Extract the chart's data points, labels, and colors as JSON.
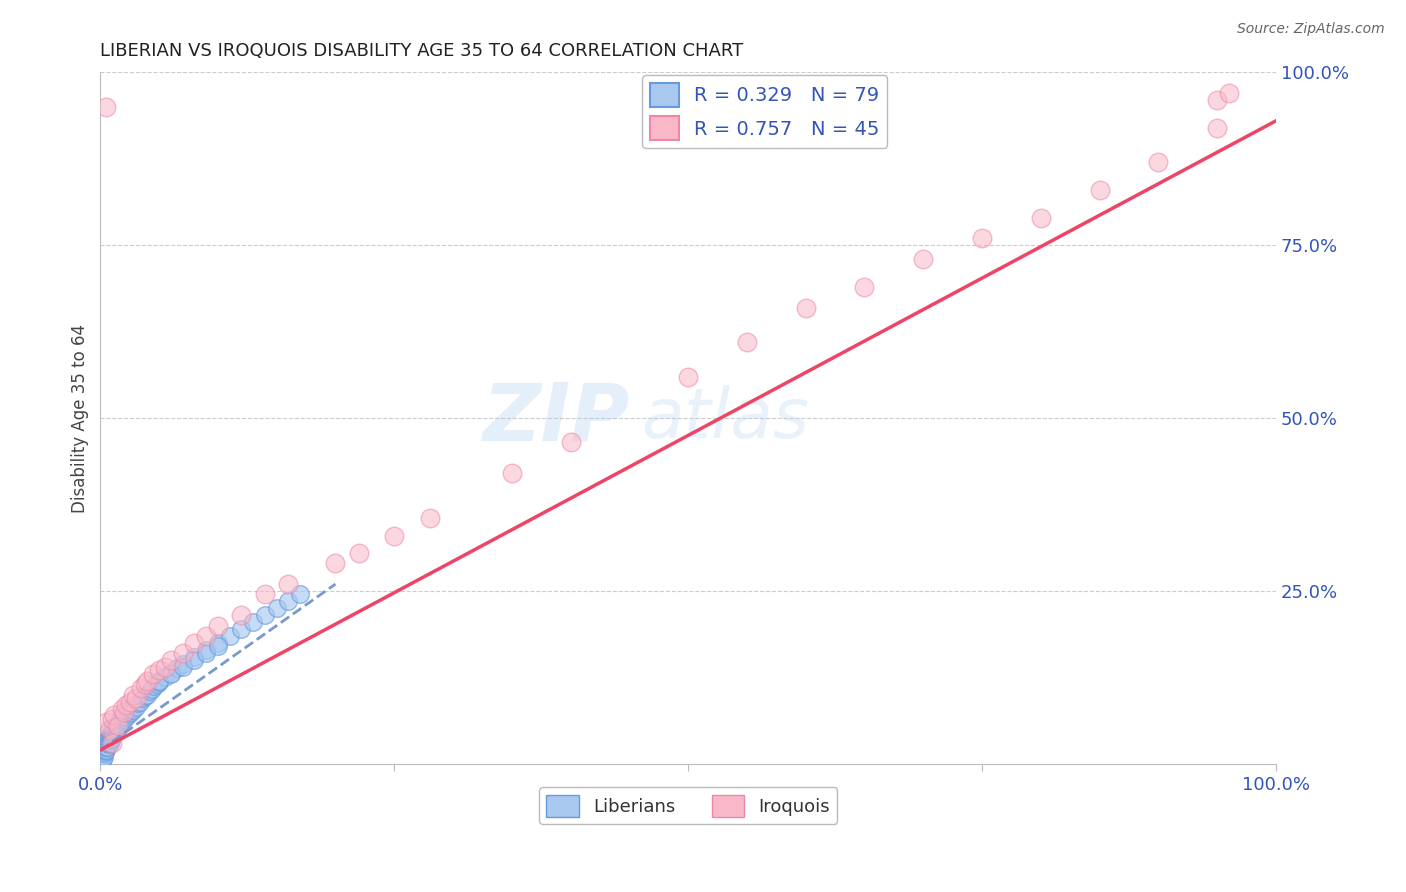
{
  "title": "LIBERIAN VS IROQUOIS DISABILITY AGE 35 TO 64 CORRELATION CHART",
  "source_text": "Source: ZipAtlas.com",
  "ylabel": "Disability Age 35 to 64",
  "xlim": [
    0.0,
    1.0
  ],
  "ylim": [
    0.0,
    1.0
  ],
  "watermark": "ZIPatlas",
  "legend_r1": "R = 0.329",
  "legend_n1": "N = 79",
  "legend_r2": "R = 0.757",
  "legend_n2": "N = 45",
  "color_liberian_fill": "#A8C8F0",
  "color_liberian_edge": "#6699DD",
  "color_iroquois_fill": "#F8B8C8",
  "color_iroquois_edge": "#EE88AA",
  "color_line_liberian": "#7799CC",
  "color_line_iroquois": "#EE4466",
  "color_grid": "#CCCCCC",
  "color_title": "#222222",
  "color_source": "#666666",
  "color_axis_blue": "#3355BB",
  "background_color": "#FFFFFF",
  "liberian_x": [
    0.001,
    0.002,
    0.002,
    0.003,
    0.003,
    0.003,
    0.004,
    0.004,
    0.004,
    0.005,
    0.005,
    0.005,
    0.006,
    0.006,
    0.006,
    0.007,
    0.007,
    0.008,
    0.008,
    0.008,
    0.009,
    0.009,
    0.01,
    0.01,
    0.01,
    0.011,
    0.011,
    0.012,
    0.012,
    0.013,
    0.013,
    0.014,
    0.014,
    0.015,
    0.015,
    0.016,
    0.017,
    0.018,
    0.019,
    0.02,
    0.021,
    0.022,
    0.023,
    0.024,
    0.025,
    0.026,
    0.027,
    0.028,
    0.03,
    0.032,
    0.034,
    0.036,
    0.038,
    0.04,
    0.042,
    0.044,
    0.046,
    0.048,
    0.05,
    0.055,
    0.06,
    0.065,
    0.07,
    0.08,
    0.09,
    0.1,
    0.11,
    0.12,
    0.13,
    0.14,
    0.15,
    0.16,
    0.17,
    0.05,
    0.06,
    0.07,
    0.08,
    0.09,
    0.1
  ],
  "liberian_y": [
    0.005,
    0.008,
    0.012,
    0.01,
    0.015,
    0.02,
    0.018,
    0.022,
    0.025,
    0.02,
    0.025,
    0.03,
    0.025,
    0.03,
    0.035,
    0.028,
    0.035,
    0.03,
    0.038,
    0.042,
    0.035,
    0.04,
    0.038,
    0.045,
    0.05,
    0.042,
    0.048,
    0.045,
    0.052,
    0.048,
    0.055,
    0.05,
    0.058,
    0.055,
    0.06,
    0.058,
    0.065,
    0.062,
    0.068,
    0.065,
    0.07,
    0.068,
    0.075,
    0.072,
    0.078,
    0.075,
    0.08,
    0.078,
    0.082,
    0.088,
    0.09,
    0.095,
    0.098,
    0.1,
    0.105,
    0.108,
    0.112,
    0.115,
    0.118,
    0.125,
    0.132,
    0.138,
    0.145,
    0.155,
    0.165,
    0.175,
    0.185,
    0.195,
    0.205,
    0.215,
    0.225,
    0.235,
    0.245,
    0.12,
    0.13,
    0.14,
    0.15,
    0.16,
    0.17
  ],
  "iroquois_x": [
    0.005,
    0.008,
    0.01,
    0.012,
    0.015,
    0.018,
    0.02,
    0.022,
    0.025,
    0.028,
    0.03,
    0.035,
    0.038,
    0.04,
    0.045,
    0.05,
    0.055,
    0.06,
    0.07,
    0.08,
    0.09,
    0.1,
    0.12,
    0.14,
    0.16,
    0.2,
    0.22,
    0.25,
    0.28,
    0.35,
    0.4,
    0.5,
    0.55,
    0.6,
    0.65,
    0.7,
    0.75,
    0.8,
    0.85,
    0.9,
    0.95,
    0.005,
    0.01,
    0.95,
    0.96
  ],
  "iroquois_y": [
    0.06,
    0.05,
    0.065,
    0.07,
    0.055,
    0.08,
    0.075,
    0.085,
    0.09,
    0.1,
    0.095,
    0.11,
    0.115,
    0.12,
    0.13,
    0.135,
    0.14,
    0.15,
    0.16,
    0.175,
    0.185,
    0.2,
    0.215,
    0.245,
    0.26,
    0.29,
    0.305,
    0.33,
    0.355,
    0.42,
    0.465,
    0.56,
    0.61,
    0.66,
    0.69,
    0.73,
    0.76,
    0.79,
    0.83,
    0.87,
    0.92,
    0.95,
    0.03,
    0.96,
    0.97
  ],
  "trend_lib_x0": 0.0,
  "trend_lib_y0": 0.02,
  "trend_lib_x1": 0.2,
  "trend_lib_y1": 0.26,
  "trend_iro_x0": 0.0,
  "trend_iro_y0": 0.02,
  "trend_iro_x1": 1.0,
  "trend_iro_y1": 0.93
}
